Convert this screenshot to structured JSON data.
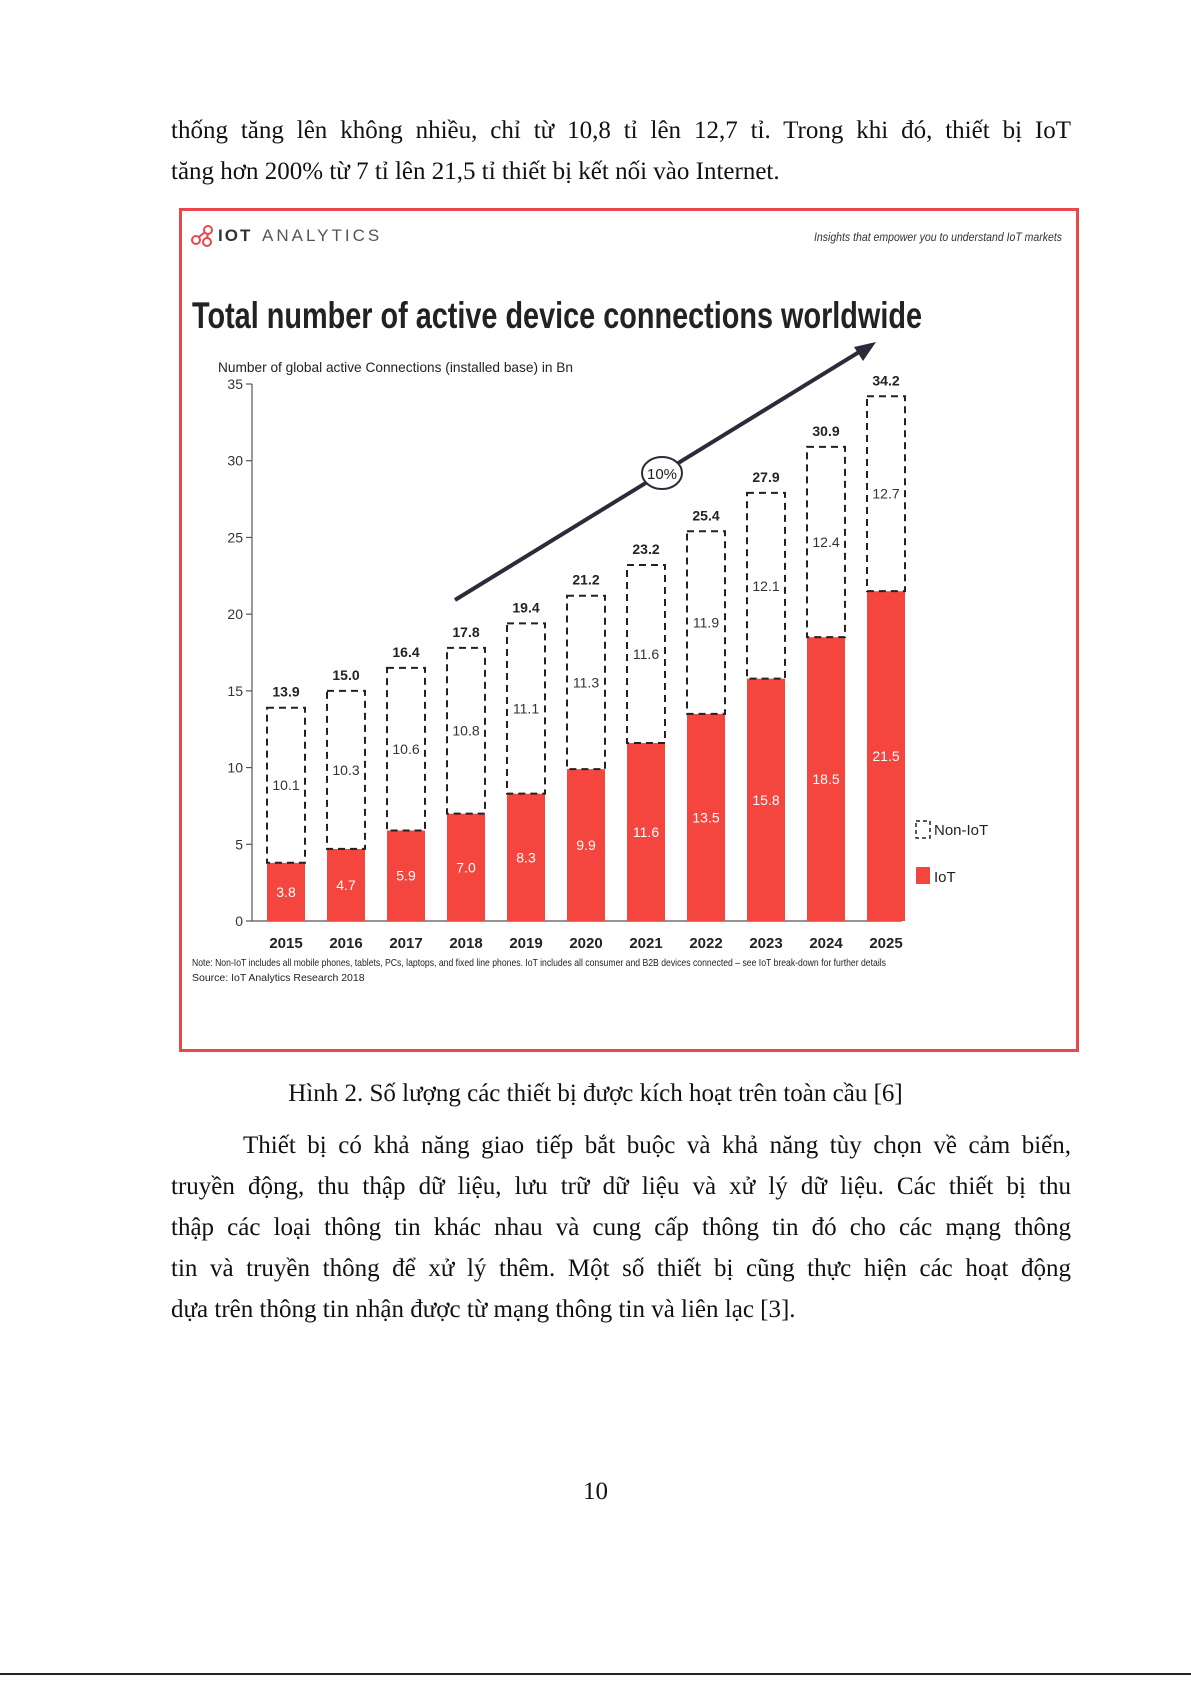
{
  "intro_lines": [
    "thống tăng lên không nhiều, chỉ từ 10,8 tỉ lên 12,7 tỉ. Trong khi đó, thiết bị IoT",
    "tăng hơn 200% từ 7 tỉ lên 21,5 tỉ thiết bị kết nối vào Internet."
  ],
  "figure": {
    "brand_bold": "IOT",
    "brand_light": "ANALYTICS",
    "tagline": "Insights that empower you to understand IoT markets",
    "note": "Note: Non-IoT includes all mobile phones, tablets, PCs, laptops, and fixed line phones. IoT includes all consumer and B2B devices connected – see IoT break-down for further details",
    "source": "Source: IoT Analytics Research 2018",
    "growth_label": "10%"
  },
  "chart_data": {
    "type": "bar",
    "stacked": true,
    "title": "Total number of active device connections worldwide",
    "ylabel": "Number of global active Connections (installed base) in Bn",
    "xlabel": "",
    "ylim": [
      0,
      35
    ],
    "yticks": [
      0,
      5,
      10,
      15,
      20,
      25,
      30,
      35
    ],
    "categories": [
      "2015",
      "2016",
      "2017",
      "2018",
      "2019",
      "2020",
      "2021",
      "2022",
      "2023",
      "2024",
      "2025"
    ],
    "series": [
      {
        "name": "IoT",
        "values": [
          3.8,
          4.7,
          5.9,
          7.0,
          8.3,
          9.9,
          11.6,
          13.5,
          15.8,
          18.5,
          21.5
        ],
        "color": "#f4463f"
      },
      {
        "name": "Non-IoT",
        "values": [
          10.1,
          10.3,
          10.6,
          10.8,
          11.1,
          11.3,
          11.6,
          11.9,
          12.1,
          12.4,
          12.7
        ],
        "color": "#ffffff"
      }
    ],
    "totals": [
      "13.9",
      "15.0",
      "16.4",
      "17.8",
      "19.4",
      "21.2",
      "23.2",
      "25.4",
      "27.9",
      "30.9",
      "34.2"
    ],
    "legend": [
      "Non-IoT",
      "IoT"
    ],
    "legend_position": "right"
  },
  "caption": "Hình 2. Số lượng các thiết bị được kích hoạt trên toàn cầu [6]",
  "body_lines": [
    "Thiết bị có khả năng giao tiếp bắt buộc và khả năng tùy chọn về cảm biến,",
    "truyền động, thu thập dữ liệu, lưu trữ dữ liệu và xử lý dữ liệu. Các thiết bị thu",
    "thập các loại thông tin khác nhau và cung cấp thông tin đó cho các mạng thông",
    "tin và truyền thông để xử lý thêm. Một số thiết bị cũng thực hiện các hoạt động",
    "dựa trên thông tin nhận được từ mạng thông tin và liên lạc [3]."
  ],
  "page_number": "10",
  "colors": {
    "accent": "#e8484c",
    "iot": "#f4463f",
    "text": "#111111"
  }
}
